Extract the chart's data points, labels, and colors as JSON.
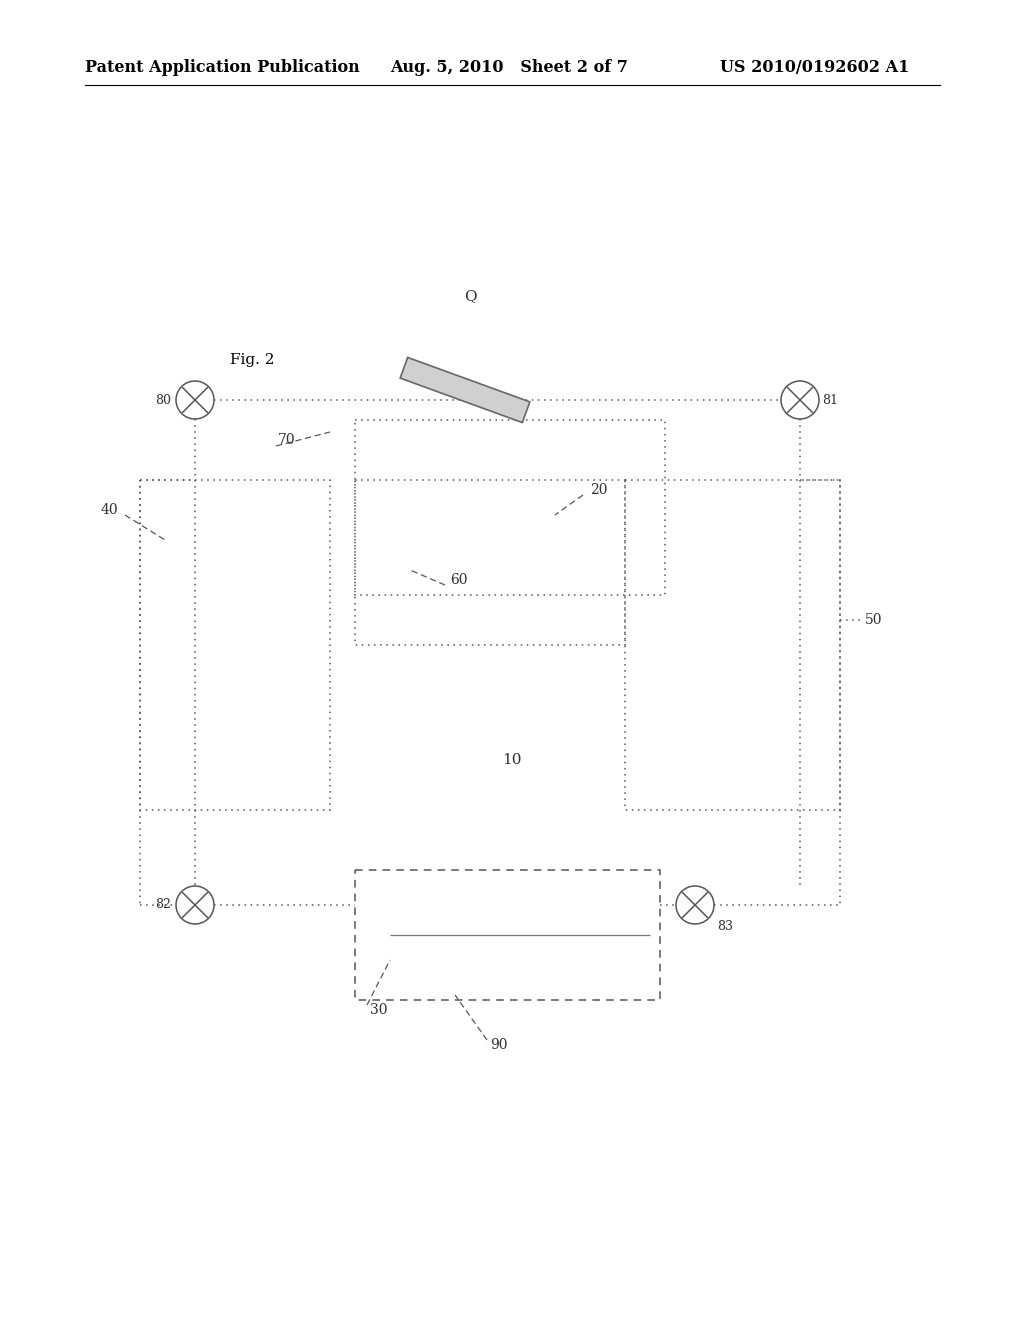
{
  "bg_color": "#ffffff",
  "header_left": "Patent Application Publication",
  "header_mid": "Aug. 5, 2010   Sheet 2 of 7",
  "header_right": "US 2010/0192602 A1",
  "fig_label": "Fig. 2",
  "header_fontsize": 11.5
}
